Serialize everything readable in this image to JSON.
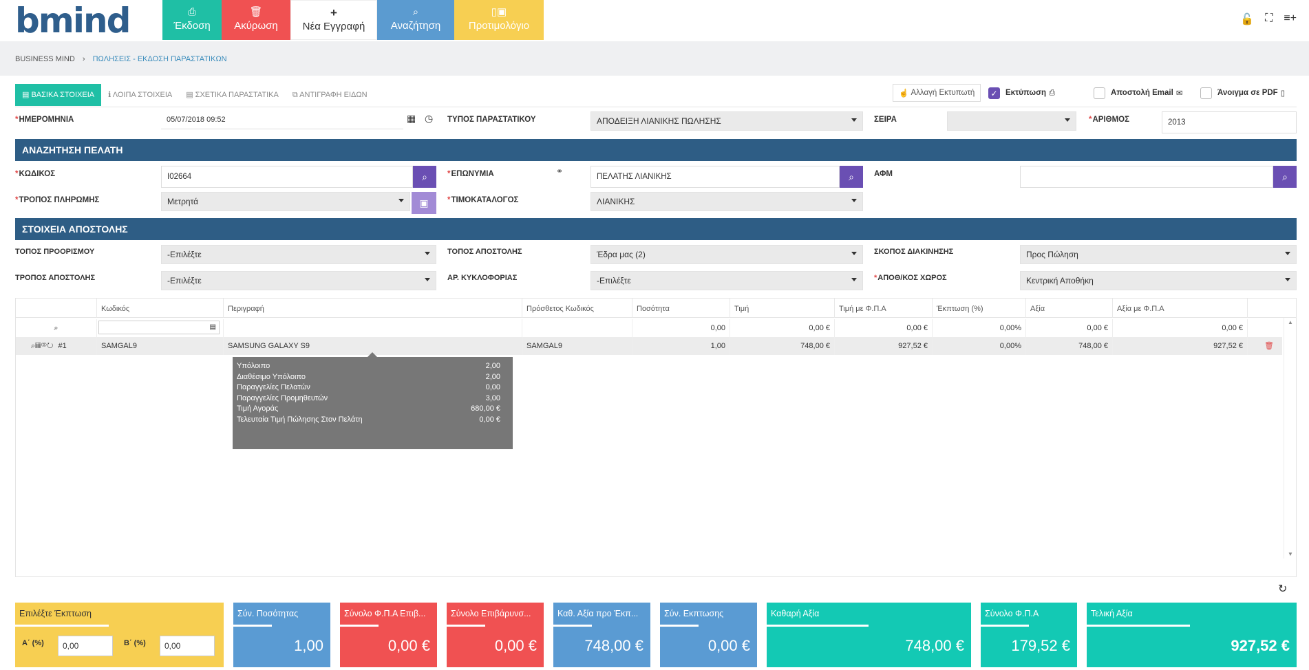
{
  "logo": {
    "text": "bmind"
  },
  "toolbar": {
    "issue": "Έκδοση",
    "cancel": "Ακύρωση",
    "new_entry": "Νέα Εγγραφή",
    "search": "Αναζήτηση",
    "template": "Προτιμολόγιο"
  },
  "breadcrumb": {
    "home": "BUSINESS MIND",
    "current": "ΠΩΛΗΣΕΙΣ - ΕΚΔΟΣΗ ΠΑΡΑΣΤΑΤΙΚΩΝ"
  },
  "tabs": [
    "ΒΑΣΙΚΑ ΣΤΟΙΧΕΙΑ",
    "ΛΟΙΠΑ ΣΤΟΙΧΕΙΑ",
    "ΣΧΕΤΙΚΑ ΠΑΡΑΣΤΑΤΙΚΑ",
    "ΑΝΤΙΓΡΑΦΗ ΕΙΔΩΝ"
  ],
  "options": {
    "change_printer": "Αλλαγή Εκτυπωτή",
    "print": "Εκτύπωση",
    "print_checked": true,
    "send_email": "Αποστολή Email",
    "open_pdf": "Άνοιγμα σε PDF"
  },
  "header": {
    "date_label": "ΗΜΕΡΟΜΗΝΙΑ",
    "date_value": "05/07/2018 09:52",
    "doc_type_label": "ΤΥΠΟΣ ΠΑΡΑΣΤΑΤΙΚΟΥ",
    "doc_type_value": "ΑΠΟΔΕΙΞΗ ΛΙΑΝΙΚΗΣ ΠΩΛΗΣΗΣ",
    "series_label": "ΣΕΙΡΑ",
    "series_value": "",
    "number_label": "ΑΡΙΘΜΟΣ",
    "number_value": "2013"
  },
  "customer": {
    "section_title": "ΑΝΑΖΗΤΗΣΗ ΠΕΛΑΤΗ",
    "code_label": "ΚΩΔΙΚΟΣ",
    "code_value": "I02664",
    "name_label": "ΕΠΩΝΥΜΙΑ",
    "name_value": "ΠΕΛΑΤΗΣ ΛΙΑΝΙΚΗΣ",
    "vat_label": "ΑΦΜ",
    "vat_value": "",
    "payment_label": "ΤΡΟΠΟΣ ΠΛΗΡΩΜΗΣ",
    "payment_value": "Μετρητά",
    "pricelist_label": "ΤΙΜΟΚΑΤΑΛΟΓΟΣ",
    "pricelist_value": "ΛΙΑΝΙΚΗΣ"
  },
  "shipping": {
    "section_title": "ΣΤΟΙΧΕΙΑ ΑΠΟΣΤΟΛΗΣ",
    "dest_label": "ΤΟΠΟΣ ΠΡΟΟΡΙΣΜΟΥ",
    "dest_value": "-Επιλέξτε",
    "origin_label": "ΤΟΠΟΣ ΑΠΟΣΤΟΛΗΣ",
    "origin_value": "Έδρα μας (2)",
    "purpose_label": "ΣΚΟΠΟΣ ΔΙΑΚΙΝΗΣΗΣ",
    "purpose_value": "Προς Πώληση",
    "method_label": "ΤΡΟΠΟΣ ΑΠΟΣΤΟΛΗΣ",
    "method_value": "-Επιλέξτε",
    "plate_label": "ΑΡ. ΚΥΚΛΟΦΟΡΙΑΣ",
    "plate_value": "-Επιλέξτε",
    "warehouse_label": "ΑΠΟΘ/ΚΟΣ ΧΩΡΟΣ",
    "warehouse_value": "Κεντρική Αποθήκη"
  },
  "grid": {
    "columns": [
      "Κωδικός",
      "Περιγραφή",
      "Πρόσθετος Κωδικός",
      "Ποσότητα",
      "Τιμή",
      "Τιμή με Φ.Π.Α",
      "Έκπτωση (%)",
      "Αξία",
      "Αξία με Φ.Π.Α"
    ],
    "filter_row": [
      "",
      "",
      "",
      "0,00",
      "0,00 €",
      "0,00 €",
      "0,00%",
      "0,00 €",
      "0,00 €"
    ],
    "row": {
      "index": "#1",
      "code": "SAMGAL9",
      "description": "SAMSUNG GALAXY S9",
      "extra_code": "SAMGAL9",
      "qty": "1,00",
      "price": "748,00 €",
      "price_vat": "927,52 €",
      "discount": "0,00%",
      "value": "748,00 €",
      "value_vat": "927,52 €"
    }
  },
  "tooltip": [
    {
      "label": "Υπόλοιπο",
      "value": "2,00"
    },
    {
      "label": "Διαθέσιμο Υπόλοιπο",
      "value": "2,00"
    },
    {
      "label": "Παραγγελίες Πελατών",
      "value": "0,00"
    },
    {
      "label": "Παραγγελίες Προμηθευτών",
      "value": "3,00"
    },
    {
      "label": "Τιμή Αγοράς",
      "value": "680,00 €"
    },
    {
      "label": "Τελευταία Τιμή Πώλησης Στον Πελάτη",
      "value": "0,00 €"
    }
  ],
  "discount": {
    "title": "Επιλέξτε Έκπτωση",
    "a_label": "Α΄ (%)",
    "a_value": "0,00",
    "b_label": "Β΄ (%)",
    "b_value": "0,00"
  },
  "totals": [
    {
      "title": "Σύν. Ποσότητας",
      "value": "1,00"
    },
    {
      "title": "Σύνολο Φ.Π.Α Επιβ...",
      "value": "0,00 €"
    },
    {
      "title": "Σύνολο Επιβάρυνσ...",
      "value": "0,00 €"
    },
    {
      "title": "Καθ. Αξία προ Έκπ...",
      "value": "748,00 €"
    },
    {
      "title": "Σύν. Εκπτωσης",
      "value": "0,00 €"
    },
    {
      "title": "Καθαρή Αξία",
      "value": "748,00 €"
    },
    {
      "title": "Σύνολο Φ.Π.Α",
      "value": "179,52 €"
    },
    {
      "title": "Τελική Αξία",
      "value": "927,52 €"
    }
  ],
  "colors": {
    "issue": "#1fbfa5",
    "cancel": "#f05152",
    "search": "#5b9bd0",
    "template": "#f7cf52",
    "section": "#2e5d85",
    "purple": "#6a4fb3",
    "teal": "#13c9b4",
    "blue": "#5a9bd3",
    "red": "#f05152"
  }
}
